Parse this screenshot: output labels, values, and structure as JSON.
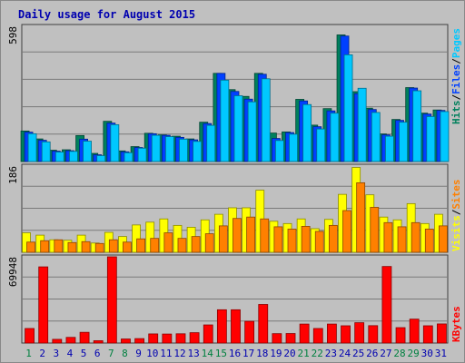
{
  "title": "Daily usage for August 2015",
  "colors": {
    "hits": "#00805c",
    "files": "#0040ff",
    "pages": "#00c8ff",
    "visits": "#ffff00",
    "sites": "#ff8000",
    "kbytes": "#ff0000",
    "weekend_day": "#008040",
    "weekday": "#0000b0",
    "background": "#c0c0c0"
  },
  "legend": {
    "top": [
      {
        "label": "Hits",
        "color": "#00805c"
      },
      {
        "label": "Files",
        "color": "#0040ff"
      },
      {
        "label": "Pages",
        "color": "#00c8ff"
      }
    ],
    "middle": [
      {
        "label": "Visits",
        "color": "#ffff00"
      },
      {
        "label": "Sites",
        "color": "#ff8000"
      }
    ],
    "bottom": [
      {
        "label": "KBytes",
        "color": "#ff0000"
      }
    ],
    "separator": "/"
  },
  "chart_data": [
    {
      "type": "bar",
      "name": "hits-files-pages",
      "ylabel_max": "598",
      "ylim": [
        0,
        598
      ],
      "categories": [
        "1",
        "2",
        "3",
        "4",
        "5",
        "6",
        "7",
        "8",
        "9",
        "10",
        "11",
        "12",
        "13",
        "14",
        "15",
        "16",
        "17",
        "18",
        "19",
        "20",
        "21",
        "22",
        "23",
        "24",
        "25",
        "26",
        "27",
        "28",
        "29",
        "30",
        "31"
      ],
      "weekend": [
        1,
        0,
        0,
        0,
        0,
        0,
        1,
        1,
        0,
        0,
        0,
        0,
        0,
        1,
        1,
        0,
        0,
        0,
        0,
        0,
        1,
        1,
        0,
        0,
        0,
        0,
        0,
        1,
        1,
        0,
        0
      ],
      "series": [
        {
          "name": "Hits",
          "values": [
            135,
            100,
            50,
            52,
            115,
            36,
            178,
            47,
            66,
            125,
            118,
            112,
            100,
            174,
            390,
            318,
            288,
            390,
            126,
            131,
            275,
            161,
            234,
            560,
            309,
            236,
            122,
            186,
            327,
            214,
            228
          ]
        },
        {
          "name": "Files",
          "values": [
            130,
            94,
            46,
            48,
            99,
            30,
            170,
            43,
            62,
            123,
            116,
            107,
            96,
            168,
            390,
            310,
            276,
            386,
            102,
            128,
            268,
            154,
            224,
            555,
            300,
            230,
            118,
            182,
            325,
            210,
            226
          ]
        },
        {
          "name": "Pages",
          "values": [
            123,
            87,
            42,
            45,
            90,
            26,
            163,
            39,
            59,
            116,
            110,
            99,
            89,
            160,
            360,
            291,
            264,
            366,
            93,
            121,
            252,
            144,
            214,
            472,
            324,
            217,
            112,
            174,
            313,
            199,
            221
          ]
        }
      ]
    },
    {
      "type": "bar",
      "name": "visits-sites",
      "ylabel_max": "186",
      "ylim": [
        0,
        186
      ],
      "categories": [
        "1",
        "2",
        "3",
        "4",
        "5",
        "6",
        "7",
        "8",
        "9",
        "10",
        "11",
        "12",
        "13",
        "14",
        "15",
        "16",
        "17",
        "18",
        "19",
        "20",
        "21",
        "22",
        "23",
        "24",
        "25",
        "26",
        "27",
        "28",
        "29",
        "30",
        "31"
      ],
      "weekend": [
        1,
        0,
        0,
        0,
        0,
        0,
        1,
        1,
        0,
        0,
        0,
        0,
        0,
        1,
        1,
        0,
        0,
        0,
        0,
        0,
        1,
        1,
        0,
        0,
        0,
        0,
        0,
        1,
        1,
        0,
        0
      ],
      "series": [
        {
          "name": "Visits",
          "values": [
            42,
            37,
            27,
            26,
            37,
            20,
            43,
            34,
            59,
            65,
            72,
            58,
            54,
            70,
            82,
            96,
            96,
            134,
            67,
            62,
            72,
            51,
            71,
            125,
            183,
            124,
            76,
            70,
            105,
            62,
            82
          ]
        },
        {
          "name": "Sites",
          "values": [
            22,
            25,
            27,
            21,
            23,
            19,
            27,
            22,
            29,
            30,
            42,
            30,
            34,
            40,
            57,
            73,
            76,
            72,
            55,
            50,
            56,
            45,
            58,
            90,
            150,
            97,
            64,
            55,
            64,
            50,
            57
          ]
        }
      ]
    },
    {
      "type": "bar",
      "name": "kbytes",
      "ylabel_max": "69948",
      "ylim": [
        0,
        69948
      ],
      "categories": [
        "1",
        "2",
        "3",
        "4",
        "5",
        "6",
        "7",
        "8",
        "9",
        "10",
        "11",
        "12",
        "13",
        "14",
        "15",
        "16",
        "17",
        "18",
        "19",
        "20",
        "21",
        "22",
        "23",
        "24",
        "25",
        "26",
        "27",
        "28",
        "29",
        "30",
        "31"
      ],
      "weekend": [
        1,
        0,
        0,
        0,
        0,
        0,
        1,
        1,
        0,
        0,
        0,
        0,
        0,
        1,
        1,
        0,
        0,
        0,
        0,
        0,
        1,
        1,
        0,
        0,
        0,
        0,
        0,
        1,
        1,
        0,
        0
      ],
      "series": [
        {
          "name": "KBytes",
          "values": [
            11800,
            61800,
            3000,
            4600,
            8700,
            1900,
            69948,
            3300,
            3600,
            7400,
            7300,
            7500,
            8400,
            14700,
            27000,
            27000,
            17600,
            31300,
            7600,
            7700,
            15400,
            11800,
            15400,
            14000,
            16500,
            14100,
            62100,
            12500,
            19400,
            14000,
            15500
          ]
        }
      ]
    }
  ]
}
